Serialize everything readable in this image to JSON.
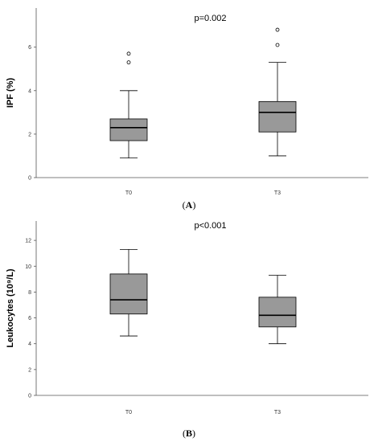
{
  "chart_data": [
    {
      "type": "box",
      "panel_label": "A",
      "title": "p=0.002",
      "xlabel": "",
      "ylabel": "IPF (%)",
      "ylim": [
        0,
        7.8
      ],
      "y_ticks": [
        0,
        2,
        4,
        6
      ],
      "categories": [
        "T0",
        "T3"
      ],
      "boxes": [
        {
          "category": "T0",
          "whisker_low": 0.9,
          "q1": 1.7,
          "median": 2.3,
          "q3": 2.7,
          "whisker_high": 4.0,
          "outliers": [
            5.3,
            5.7
          ]
        },
        {
          "category": "T3",
          "whisker_low": 1.0,
          "q1": 2.1,
          "median": 3.0,
          "q3": 3.5,
          "whisker_high": 5.3,
          "outliers": [
            6.1,
            6.8
          ]
        }
      ],
      "box_color": "#999999",
      "grid": false
    },
    {
      "type": "box",
      "panel_label": "B",
      "title": "p<0.001",
      "xlabel": "",
      "ylabel": "Leukocytes (10⁹/L)",
      "ylim": [
        0,
        13.5
      ],
      "y_ticks": [
        0,
        2,
        4,
        6,
        8,
        10,
        12
      ],
      "categories": [
        "T0",
        "T3"
      ],
      "boxes": [
        {
          "category": "T0",
          "whisker_low": 4.6,
          "q1": 6.3,
          "median": 7.4,
          "q3": 9.4,
          "whisker_high": 11.3,
          "outliers": []
        },
        {
          "category": "T3",
          "whisker_low": 4.0,
          "q1": 5.3,
          "median": 6.2,
          "q3": 7.6,
          "whisker_high": 9.3,
          "outliers": []
        }
      ],
      "box_color": "#999999",
      "grid": false
    }
  ]
}
